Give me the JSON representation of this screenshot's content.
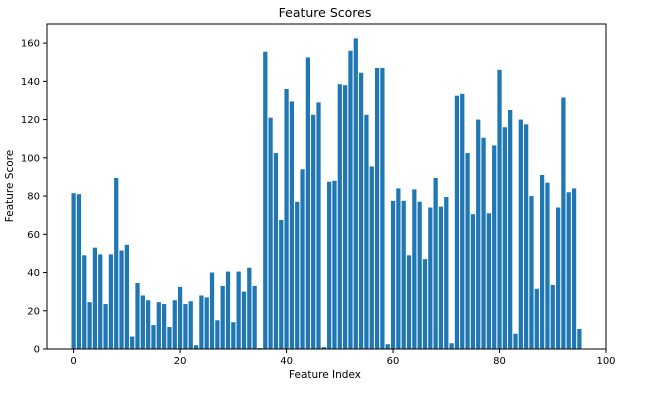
{
  "chart_data": {
    "type": "bar",
    "title": "Feature Scores",
    "xlabel": "Feature Index",
    "ylabel": "Feature Score",
    "xlim": [
      -5,
      100
    ],
    "ylim": [
      0,
      170
    ],
    "xticks": [
      0,
      20,
      40,
      60,
      80,
      100
    ],
    "yticks": [
      0,
      20,
      40,
      60,
      80,
      100,
      120,
      140,
      160
    ],
    "grid": false,
    "legend": "none",
    "bar_color": "#1f77b4",
    "x": [
      0,
      1,
      2,
      3,
      4,
      5,
      6,
      7,
      8,
      9,
      10,
      11,
      12,
      13,
      14,
      15,
      16,
      17,
      18,
      19,
      20,
      21,
      22,
      23,
      24,
      25,
      26,
      27,
      28,
      29,
      30,
      31,
      32,
      33,
      34,
      35,
      36,
      37,
      38,
      39,
      40,
      41,
      42,
      43,
      44,
      45,
      46,
      47,
      48,
      49,
      50,
      51,
      52,
      53,
      54,
      55,
      56,
      57,
      58,
      59,
      60,
      61,
      62,
      63,
      64,
      65,
      66,
      67,
      68,
      69,
      70,
      71,
      72,
      73,
      74,
      75,
      76,
      77,
      78,
      79,
      80,
      81,
      82,
      83,
      84,
      85,
      86,
      87,
      88,
      89,
      90,
      91,
      92,
      93,
      94,
      95
    ],
    "values": [
      81.5,
      81,
      49,
      24.5,
      53,
      49.5,
      23.5,
      49.5,
      89.5,
      51.5,
      54.5,
      6.5,
      34.5,
      28,
      25.5,
      12.5,
      24.5,
      23.5,
      11.5,
      25.5,
      32.5,
      23.5,
      25,
      2,
      28,
      27,
      40,
      15,
      33,
      40.5,
      14,
      40.5,
      30,
      42.5,
      33,
      0.5,
      155.5,
      121,
      102.5,
      67.5,
      136,
      129.5,
      77,
      94,
      152.5,
      122.5,
      129,
      1,
      87.5,
      88,
      138.5,
      138,
      156,
      162.5,
      144.5,
      122.5,
      95.5,
      147,
      147,
      2.5,
      77.5,
      84,
      77.5,
      49,
      83.5,
      77,
      47,
      74,
      89.5,
      74.5,
      79.5,
      3,
      132.5,
      133.5,
      102.5,
      70.5,
      120,
      110.5,
      71,
      106.5,
      146,
      116,
      125,
      8,
      120,
      117.5,
      80,
      31.5,
      91,
      87,
      33.5,
      74,
      131.5,
      82,
      84,
      10.5
    ]
  }
}
